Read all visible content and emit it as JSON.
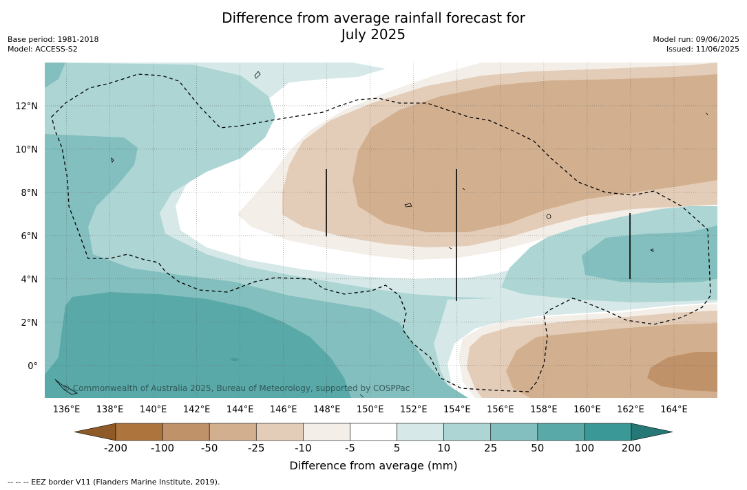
{
  "title_line1": "Difference from average rainfall forecast for",
  "title_line2": "July 2025",
  "base_period": "Base period: 1981-2018",
  "model": "Model: ACCESS-S2",
  "model_run": "Model run: 09/06/2025",
  "issued": "Issued: 11/06/2025",
  "copyright": "© Commonwealth of Australia 2025, Bureau of Meteorology, supported by COSPPac",
  "footnote": "--  --  -- EEZ border V11 (Flanders Marine Institute, 2019).",
  "map": {
    "lon_range": [
      135,
      166
    ],
    "lat_range": [
      -1.5,
      14
    ],
    "lon_ticks": [
      "136°E",
      "138°E",
      "140°E",
      "142°E",
      "144°E",
      "146°E",
      "148°E",
      "150°E",
      "152°E",
      "154°E",
      "156°E",
      "158°E",
      "160°E",
      "162°E",
      "164°E"
    ],
    "lat_ticks": [
      "0°",
      "2°N",
      "4°N",
      "6°N",
      "8°N",
      "10°N",
      "12°N"
    ]
  },
  "colorbar": {
    "title": "Difference from average (mm)",
    "labels": [
      "-200",
      "-100",
      "-50",
      "-25",
      "-10",
      "-5",
      "5",
      "10",
      "25",
      "50",
      "100",
      "200"
    ],
    "colors": [
      "#8e5a28",
      "#ad743d",
      "#c0926a",
      "#d2b08f",
      "#e4cdb8",
      "#f3eee8",
      "#ffffff",
      "#d6e9e8",
      "#acd5d4",
      "#83bfbe",
      "#5aa9a9",
      "#3a9896",
      "#267876"
    ]
  }
}
